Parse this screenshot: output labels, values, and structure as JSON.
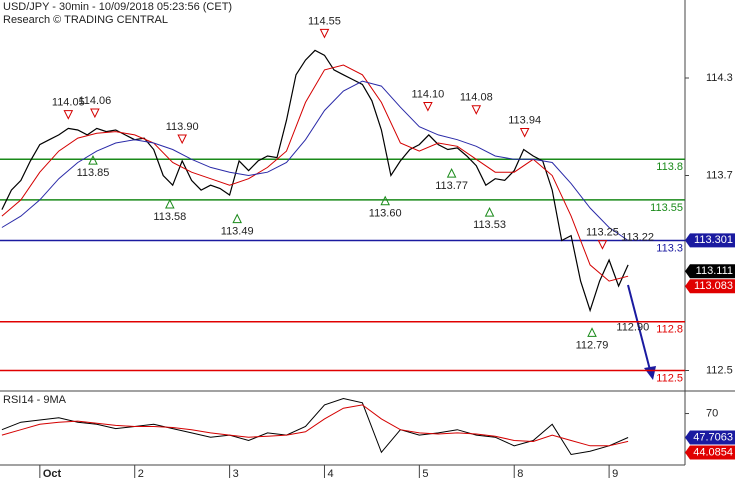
{
  "chart_data": {
    "type": "line",
    "title": "USD/JPY - 30min - 10/09/2018 05:23:56 (CET)",
    "subtitle": "Research © TRADING CENTRAL",
    "xlim": [
      -0.42,
      6.8
    ],
    "xticks": [
      {
        "value": 0,
        "label": "Oct"
      },
      {
        "value": 1,
        "label": "2"
      },
      {
        "value": 2,
        "label": "3"
      },
      {
        "value": 3,
        "label": "4"
      },
      {
        "value": 4,
        "label": "5"
      },
      {
        "value": 5,
        "label": "8"
      },
      {
        "value": 6,
        "label": "9"
      }
    ],
    "ylim": [
      112.38,
      114.78
    ],
    "yticks": [
      114.3,
      113.7,
      112.5
    ],
    "series": [
      {
        "color": "#000000",
        "width": 1.2,
        "x": [
          -0.4,
          -0.3,
          -0.2,
          -0.1,
          0,
          0.1,
          0.2,
          0.3,
          0.4,
          0.5,
          0.6,
          0.7,
          0.8,
          0.9,
          1,
          1.1,
          1.2,
          1.3,
          1.4,
          1.5,
          1.6,
          1.7,
          1.8,
          1.9,
          2,
          2.1,
          2.2,
          2.3,
          2.4,
          2.5,
          2.6,
          2.7,
          2.8,
          2.9,
          3,
          3.1,
          3.2,
          3.3,
          3.4,
          3.5,
          3.6,
          3.7,
          3.8,
          3.9,
          4,
          4.1,
          4.2,
          4.3,
          4.4,
          4.5,
          4.6,
          4.7,
          4.8,
          4.9,
          5,
          5.1,
          5.2,
          5.3,
          5.4,
          5.5,
          5.6,
          5.7,
          5.8,
          5.9,
          6,
          6.1,
          6.2
        ],
        "values": [
          113.49,
          113.61,
          113.67,
          113.79,
          113.89,
          113.92,
          113.95,
          113.99,
          113.98,
          113.95,
          113.99,
          113.97,
          113.98,
          113.95,
          113.92,
          113.93,
          113.86,
          113.7,
          113.64,
          113.79,
          113.67,
          113.61,
          113.64,
          113.62,
          113.58,
          113.79,
          113.73,
          113.79,
          113.82,
          113.81,
          114.04,
          114.32,
          114.41,
          114.47,
          114.44,
          114.35,
          114.32,
          114.29,
          114.26,
          114.16,
          113.98,
          113.7,
          113.79,
          113.86,
          113.89,
          113.95,
          113.89,
          113.86,
          113.87,
          113.82,
          113.76,
          113.64,
          113.68,
          113.67,
          113.73,
          113.86,
          113.82,
          113.79,
          113.61,
          113.3,
          113.33,
          113.05,
          112.87,
          113.05,
          113.18,
          113.02,
          113.15
        ]
      },
      {
        "color": "#d40000",
        "width": 1,
        "x": [
          -0.4,
          -0.2,
          0,
          0.2,
          0.4,
          0.6,
          0.8,
          1,
          1.2,
          1.4,
          1.6,
          1.8,
          2,
          2.2,
          2.4,
          2.6,
          2.8,
          3,
          3.2,
          3.4,
          3.6,
          3.8,
          4,
          4.2,
          4.4,
          4.6,
          4.8,
          5,
          5.2,
          5.4,
          5.6,
          5.8,
          6,
          6.2
        ],
        "values": [
          113.45,
          113.55,
          113.72,
          113.85,
          113.93,
          113.96,
          113.97,
          113.95,
          113.9,
          113.78,
          113.72,
          113.68,
          113.64,
          113.68,
          113.75,
          113.85,
          114.15,
          114.35,
          114.38,
          114.32,
          114.15,
          113.9,
          113.85,
          113.9,
          113.88,
          113.8,
          113.72,
          113.72,
          113.8,
          113.7,
          113.45,
          113.15,
          113.05,
          113.08
        ]
      },
      {
        "color": "#2a2aa8",
        "width": 1,
        "x": [
          -0.4,
          -0.2,
          0,
          0.2,
          0.4,
          0.6,
          0.8,
          1,
          1.2,
          1.4,
          1.6,
          1.8,
          2,
          2.2,
          2.4,
          2.6,
          2.8,
          3,
          3.2,
          3.4,
          3.6,
          3.8,
          4,
          4.2,
          4.4,
          4.6,
          4.8,
          5,
          5.2,
          5.4,
          5.6,
          5.8,
          6,
          6.2
        ],
        "values": [
          113.38,
          113.45,
          113.55,
          113.68,
          113.78,
          113.85,
          113.9,
          113.92,
          113.9,
          113.86,
          113.8,
          113.75,
          113.72,
          113.7,
          113.72,
          113.78,
          113.92,
          114.1,
          114.22,
          114.28,
          114.25,
          114.12,
          114,
          113.95,
          113.92,
          113.88,
          113.82,
          113.8,
          113.8,
          113.78,
          113.65,
          113.5,
          113.38,
          113.3
        ]
      }
    ],
    "levels": [
      {
        "value": 113.8,
        "color": "#1a8a1a"
      },
      {
        "value": 113.55,
        "color": "#1a8a1a"
      },
      {
        "value": 113.3,
        "color": "#1a1aa0"
      },
      {
        "value": 112.8,
        "color": "#e00000"
      },
      {
        "value": 112.5,
        "color": "#e00000"
      }
    ],
    "price_tags": [
      {
        "value": 113.301,
        "color": "#1a1aa0"
      },
      {
        "value": 113.111,
        "color": "#000000"
      },
      {
        "value": 113.083,
        "color": "#e00000"
      }
    ],
    "annotations": [
      {
        "x": 0.3,
        "value": 114.05,
        "label": "114.05",
        "kind": "high",
        "marker": true
      },
      {
        "x": 0.58,
        "value": 114.06,
        "label": "114.06",
        "kind": "high",
        "marker": true
      },
      {
        "x": 1.5,
        "value": 113.9,
        "label": "113.90",
        "kind": "high",
        "marker": true
      },
      {
        "x": 3.0,
        "value": 114.55,
        "label": "114.55",
        "kind": "high",
        "marker": true
      },
      {
        "x": 4.09,
        "value": 114.1,
        "label": "114.10",
        "kind": "high",
        "marker": true
      },
      {
        "x": 4.6,
        "value": 114.08,
        "label": "114.08",
        "kind": "high",
        "marker": true
      },
      {
        "x": 5.11,
        "value": 113.94,
        "label": "113.94",
        "kind": "high",
        "marker": true
      },
      {
        "x": 5.93,
        "value": 113.25,
        "label": "113.25",
        "kind": "high",
        "marker": true
      },
      {
        "x": 6.3,
        "value": 113.22,
        "label": "113.22",
        "kind": "high",
        "marker": false
      },
      {
        "x": 0.56,
        "value": 113.85,
        "label": "113.85",
        "kind": "low",
        "marker": true
      },
      {
        "x": 1.37,
        "value": 113.58,
        "label": "113.58",
        "kind": "low",
        "marker": true
      },
      {
        "x": 2.08,
        "value": 113.49,
        "label": "113.49",
        "kind": "low",
        "marker": true
      },
      {
        "x": 3.64,
        "value": 113.6,
        "label": "113.60",
        "kind": "low",
        "marker": true
      },
      {
        "x": 4.34,
        "value": 113.77,
        "label": "113.77",
        "kind": "low",
        "marker": true
      },
      {
        "x": 4.74,
        "value": 113.53,
        "label": "113.53",
        "kind": "low",
        "marker": true
      },
      {
        "x": 5.82,
        "value": 112.79,
        "label": "112.79",
        "kind": "low",
        "marker": true
      },
      {
        "x": 6.25,
        "value": 112.9,
        "label": "112.90",
        "kind": "low",
        "marker": false
      }
    ],
    "rsi": {
      "label": "RSI14 - 9MA",
      "ylim": [
        25,
        90
      ],
      "yticks": [
        70
      ],
      "series": [
        {
          "color": "#000000",
          "x": [
            -0.4,
            -0.2,
            0,
            0.2,
            0.4,
            0.6,
            0.8,
            1,
            1.2,
            1.4,
            1.6,
            1.8,
            2,
            2.2,
            2.4,
            2.6,
            2.8,
            3,
            3.2,
            3.4,
            3.6,
            3.8,
            4,
            4.2,
            4.4,
            4.6,
            4.8,
            5,
            5.2,
            5.4,
            5.6,
            5.8,
            6,
            6.2
          ],
          "values": [
            55,
            62,
            64,
            66,
            62,
            60,
            56,
            58,
            60,
            56,
            52,
            48,
            50,
            45,
            52,
            50,
            58,
            78,
            84,
            80,
            34,
            55,
            50,
            52,
            55,
            50,
            48,
            40,
            45,
            60,
            32,
            35,
            40,
            47.7063
          ]
        },
        {
          "color": "#d40000",
          "x": [
            -0.4,
            -0.2,
            0,
            0.2,
            0.4,
            0.6,
            0.8,
            1,
            1.2,
            1.4,
            1.6,
            1.8,
            2,
            2.2,
            2.4,
            2.6,
            2.8,
            3,
            3.2,
            3.4,
            3.6,
            3.8,
            4,
            4.2,
            4.4,
            4.6,
            4.8,
            5,
            5.2,
            5.4,
            5.6,
            5.8,
            6,
            6.2
          ],
          "values": [
            50,
            55,
            60,
            62,
            63,
            61,
            59,
            58,
            58,
            57,
            55,
            52,
            50,
            48,
            49,
            50,
            53,
            65,
            75,
            78,
            65,
            55,
            52,
            51,
            52,
            51,
            49,
            45,
            44,
            50,
            45,
            40,
            40,
            44.0854
          ]
        }
      ],
      "tags": [
        {
          "value": 47.7063,
          "color": "#1a1aa0"
        },
        {
          "value": 44.0854,
          "color": "#e00000"
        }
      ]
    }
  }
}
